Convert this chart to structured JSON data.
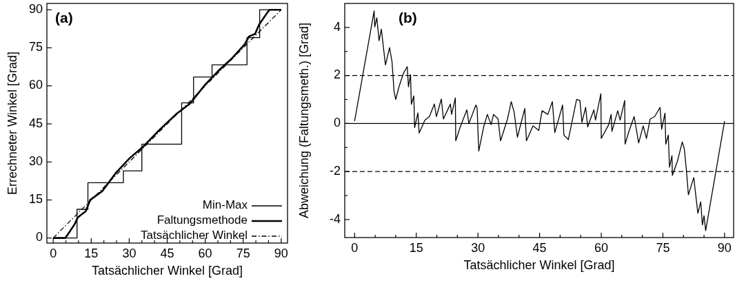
{
  "chart_data": [
    {
      "type": "line",
      "xlabel": "Tatsächlicher Winkel [Grad]",
      "ylabel": "Errechneter Winkel [Grad]",
      "annotations": [
        "(a)"
      ],
      "xlim": [
        -2.5,
        92.5
      ],
      "ylim": [
        -2,
        92.5
      ],
      "xticks": [
        0,
        {
          "value": 5,
          "label": null
        },
        {
          "value": 10,
          "label": null
        },
        15,
        {
          "value": 20,
          "label": null
        },
        {
          "value": 25,
          "label": null
        },
        30,
        {
          "value": 35,
          "label": null
        },
        {
          "value": 40,
          "label": null
        },
        45,
        {
          "value": 50,
          "label": null
        },
        {
          "value": 55,
          "label": null
        },
        60,
        {
          "value": 65,
          "label": null
        },
        {
          "value": 70,
          "label": null
        },
        75,
        {
          "value": 80,
          "label": null
        },
        {
          "value": 85,
          "label": null
        },
        90
      ],
      "yticks": [
        0,
        15,
        30,
        45,
        60,
        75,
        90
      ],
      "legend": "bottom right",
      "grid": false,
      "series": [
        {
          "name": "Min-Max",
          "type": "step",
          "color": "#000000",
          "line_style": "solid",
          "x": [
            0,
            9.4,
            13.7,
            27.7,
            35,
            50.7,
            55.4,
            62.7,
            76.5,
            81.5,
            90
          ],
          "values": [
            0,
            11.3,
            21.8,
            26.5,
            37,
            53.3,
            63.5,
            68.3,
            79,
            90,
            90
          ]
        },
        {
          "name": "Faltungsmethode",
          "type": "line",
          "color": "#000000",
          "line_style": "solid",
          "x": [
            0,
            4.75,
            6.5,
            8.5,
            9.6,
            10.8,
            12.8,
            13.8,
            14.6,
            19.4,
            24.6,
            30.2,
            35.5,
            41.8,
            48.7,
            54,
            60,
            65.8,
            70.2,
            75.7,
            77.3,
            79.7,
            81.2,
            84.6,
            85.4,
            90
          ],
          "values": [
            0,
            0,
            2.5,
            5.5,
            8,
            9,
            10.5,
            13,
            15,
            18.5,
            25.5,
            31.5,
            36,
            42.5,
            49,
            53,
            60.5,
            66.5,
            70.5,
            76.5,
            79.5,
            80.5,
            84,
            89,
            90,
            90
          ]
        },
        {
          "name": "Tatsächlicher Winkel",
          "type": "line",
          "color": "#000000",
          "line_style": "dashdot",
          "x": [
            0,
            90
          ],
          "values": [
            0,
            90
          ]
        }
      ]
    },
    {
      "type": "line",
      "xlabel": "Tatsächlicher Winkel [Grad]",
      "ylabel": "Abweichung (Faltungsmeth.) [Grad]",
      "annotations": [
        "(b)"
      ],
      "xlim": [
        -2.4,
        92.2
      ],
      "ylim": [
        -4.75,
        5
      ],
      "xticks": [
        0,
        {
          "value": 5,
          "label": null
        },
        {
          "value": 10,
          "label": null
        },
        15,
        {
          "value": 20,
          "label": null
        },
        {
          "value": 25,
          "label": null
        },
        30,
        {
          "value": 35,
          "label": null
        },
        {
          "value": 40,
          "label": null
        },
        45,
        {
          "value": 50,
          "label": null
        },
        {
          "value": 55,
          "label": null
        },
        60,
        {
          "value": 65,
          "label": null
        },
        {
          "value": 70,
          "label": null
        },
        75,
        {
          "value": 80,
          "label": null
        },
        {
          "value": 85,
          "label": null
        },
        90
      ],
      "yticks": [
        {
          "value": -4,
          "label": "-4"
        },
        {
          "value": -3,
          "label": null
        },
        {
          "value": -2,
          "label": "-2"
        },
        {
          "value": -1,
          "label": null
        },
        0,
        {
          "value": 1,
          "label": null
        },
        2,
        {
          "value": 3,
          "label": null
        },
        4
      ],
      "grid": false,
      "legend": false,
      "ref_lines": [
        {
          "axis": "y",
          "value": 0,
          "color": "#000000",
          "line_style": "solid"
        },
        {
          "axis": "y",
          "value": 2,
          "color": "#000000",
          "line_style": "dashed"
        },
        {
          "axis": "y",
          "value": -2,
          "color": "#000000",
          "line_style": "dashed"
        }
      ],
      "series": [
        {
          "type": "line",
          "color": "#000000",
          "line_style": "solid",
          "x": [
            0,
            4.75,
            4.9,
            5.4,
            5.95,
            6.5,
            7.5,
            8.5,
            9.1,
            9.6,
            10.0,
            10.8,
            11.9,
            12.8,
            13.1,
            13.6,
            13.8,
            14.4,
            14.6,
            15.4,
            15.7,
            17.1,
            18.2,
            19.4,
            19.9,
            21.1,
            21.6,
            23.3,
            23.6,
            24.5,
            24.6,
            25.6,
            27.3,
            27.8,
            29.5,
            29.8,
            30.2,
            31.4,
            32.3,
            33.2,
            33.8,
            34.9,
            35.5,
            37.2,
            38.1,
            38.8,
            39.6,
            41.4,
            41.8,
            43.4,
            44.8,
            45.6,
            47.0,
            48.1,
            48.7,
            50.6,
            50.9,
            52.0,
            54.0,
            54.8,
            55.3,
            56.2,
            56.7,
            58.2,
            58.6,
            59.9,
            60.0,
            61.8,
            62.4,
            62.6,
            64.0,
            64.6,
            65.7,
            65.8,
            66.8,
            68.0,
            69.1,
            70.2,
            71.0,
            71.9,
            73.0,
            74.3,
            74.7,
            75.5,
            75.7,
            76.3,
            76.6,
            77.2,
            77.3,
            78.6,
            79.7,
            80.2,
            80.7,
            81.2,
            82.5,
            83.5,
            84.2,
            84.6,
            85.0,
            85.4,
            90.0
          ],
          "values": [
            0.1,
            4.69,
            4.02,
            4.4,
            3.45,
            3.93,
            2.44,
            3.16,
            2.57,
            1.33,
            1.0,
            1.53,
            2.1,
            2.37,
            1.53,
            2.04,
            0.8,
            1.15,
            -0.17,
            0.44,
            -0.4,
            0.14,
            0.29,
            0.81,
            0.29,
            1.02,
            0.19,
            0.81,
            0.38,
            1.07,
            -0.72,
            -0.19,
            0.57,
            0,
            0.77,
            0.65,
            -1.15,
            -0.14,
            0.38,
            -0.05,
            0.38,
            0.19,
            -0.72,
            0.19,
            0.91,
            0.48,
            -0.57,
            0.62,
            -0.72,
            -0.1,
            -0.29,
            0.53,
            0.38,
            0.91,
            -0.38,
            0.77,
            -0.48,
            -0.67,
            1.0,
            0.96,
            0.05,
            0.67,
            -0.14,
            0.57,
            0.14,
            1.24,
            -0.62,
            -0.05,
            0.38,
            -0.33,
            0.53,
            0.14,
            0.96,
            -0.86,
            -0.29,
            0.29,
            -0.81,
            -0.1,
            -0.62,
            0.19,
            0.29,
            0.67,
            -0.24,
            0.43,
            -0.86,
            -0.48,
            -1.82,
            -1.34,
            -2.16,
            -1.53,
            -0.77,
            -1.05,
            -1.92,
            -2.97,
            -2.25,
            -3.74,
            -3.26,
            -4.22,
            -3.84,
            -4.46,
            0.1
          ]
        }
      ]
    }
  ]
}
